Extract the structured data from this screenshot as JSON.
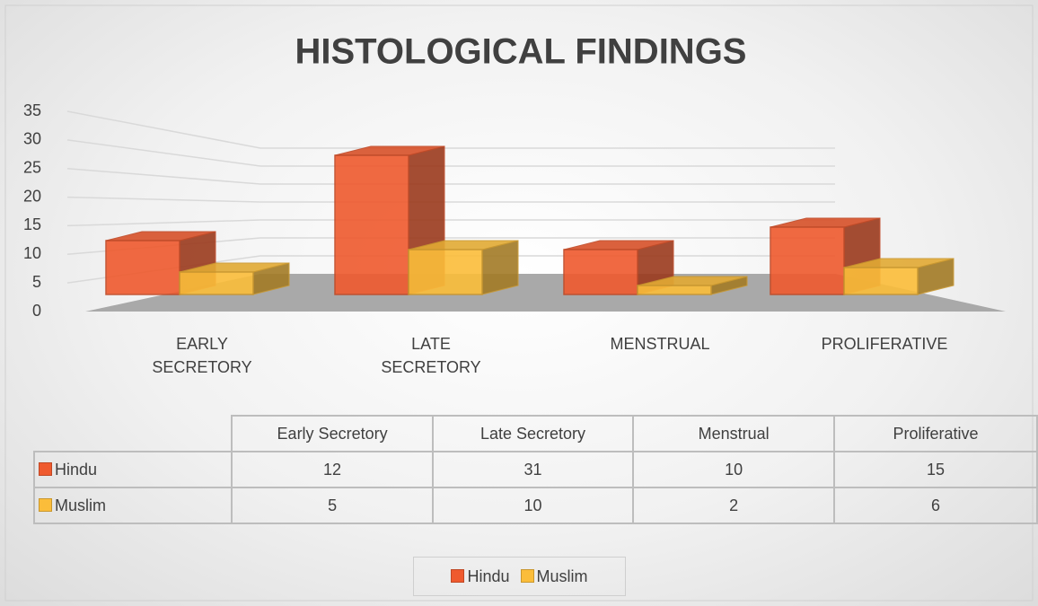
{
  "chart_data": {
    "type": "bar",
    "title": "HISTOLOGICAL FINDINGS",
    "categories": [
      "EARLY SECRETORY",
      "LATE SECRETORY",
      "MENSTRUAL",
      "PROLIFERATIVE"
    ],
    "table_columns": [
      "Early Secretory",
      "Late Secretory",
      "Menstrual",
      "Proliferative"
    ],
    "series": [
      {
        "name": "Hindu",
        "color": "#ef5a2e",
        "values": [
          12,
          31,
          10,
          15
        ]
      },
      {
        "name": "Muslim",
        "color": "#fbbd3a",
        "values": [
          5,
          10,
          2,
          6
        ]
      }
    ],
    "ylim": [
      0,
      35
    ],
    "yticks": [
      0,
      5,
      10,
      15,
      20,
      25,
      30,
      35
    ],
    "grid": true,
    "legend": "bottom"
  }
}
